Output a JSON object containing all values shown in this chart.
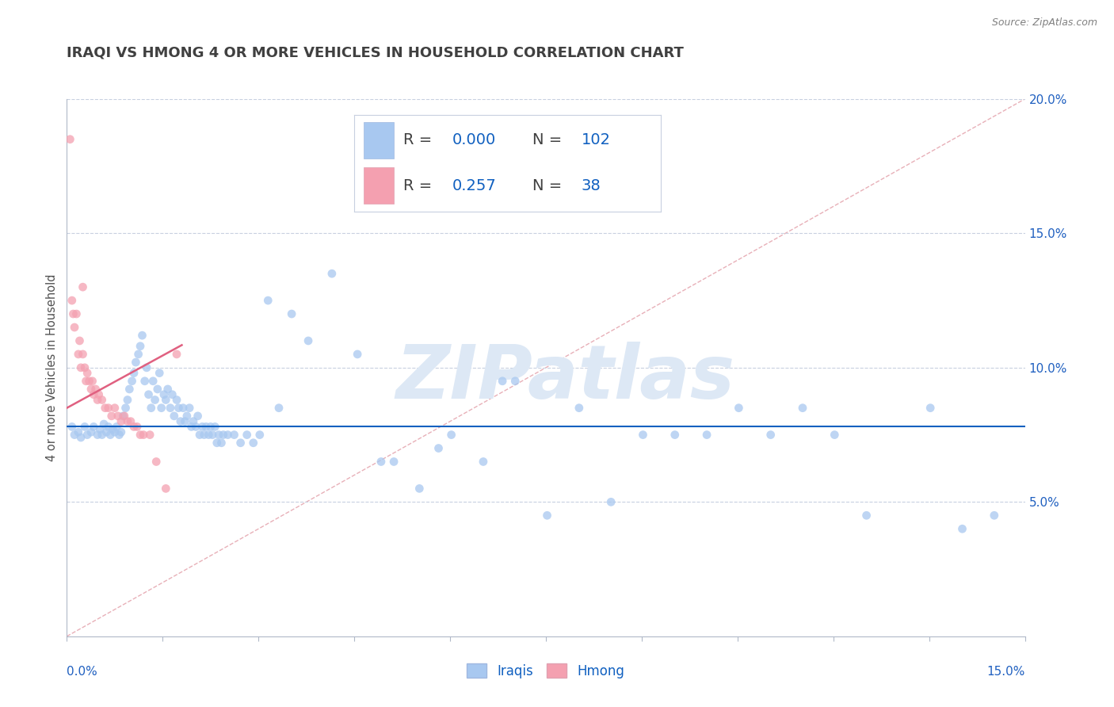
{
  "title": "IRAQI VS HMONG 4 OR MORE VEHICLES IN HOUSEHOLD CORRELATION CHART",
  "source": "Source: ZipAtlas.com",
  "ylabel": "4 or more Vehicles in Household",
  "xlim": [
    0.0,
    15.0
  ],
  "ylim": [
    0.0,
    20.0
  ],
  "ytick_vals": [
    5.0,
    10.0,
    15.0,
    20.0
  ],
  "ytick_labels": [
    "5.0%",
    "10.0%",
    "15.0%",
    "20.0%"
  ],
  "legend_r_iraqi": "0.000",
  "legend_n_iraqi": "102",
  "legend_r_hmong": "0.257",
  "legend_n_hmong": "38",
  "iraqi_color": "#a8c8f0",
  "hmong_color": "#f4a0b0",
  "iraqi_trend_color": "#1060c0",
  "hmong_trend_color": "#e06080",
  "ref_line_color": "#e8b0b8",
  "watermark": "ZIPatlas",
  "watermark_color": "#dde8f5",
  "background_color": "#ffffff",
  "iraqi_x": [
    0.08,
    0.12,
    0.18,
    0.22,
    0.28,
    0.32,
    0.38,
    0.42,
    0.48,
    0.52,
    0.55,
    0.58,
    0.62,
    0.65,
    0.68,
    0.72,
    0.75,
    0.78,
    0.82,
    0.85,
    0.88,
    0.92,
    0.95,
    0.98,
    1.02,
    1.05,
    1.08,
    1.12,
    1.15,
    1.18,
    1.22,
    1.25,
    1.28,
    1.32,
    1.35,
    1.38,
    1.42,
    1.45,
    1.48,
    1.52,
    1.55,
    1.58,
    1.62,
    1.65,
    1.68,
    1.72,
    1.75,
    1.78,
    1.82,
    1.85,
    1.88,
    1.92,
    1.95,
    1.98,
    2.02,
    2.05,
    2.08,
    2.12,
    2.15,
    2.18,
    2.22,
    2.25,
    2.28,
    2.32,
    2.35,
    2.38,
    2.42,
    2.45,
    2.52,
    2.62,
    2.72,
    2.82,
    2.92,
    3.02,
    3.15,
    3.32,
    3.52,
    3.78,
    4.15,
    4.55,
    5.12,
    5.82,
    6.52,
    7.52,
    8.52,
    9.52,
    10.52,
    11.52,
    12.52,
    13.52,
    14.02,
    14.52,
    4.92,
    5.52,
    6.02,
    6.82,
    7.02,
    8.02,
    9.02,
    10.02,
    11.02,
    12.02
  ],
  "iraqi_y": [
    7.8,
    7.5,
    7.6,
    7.4,
    7.8,
    7.5,
    7.6,
    7.8,
    7.5,
    7.7,
    7.5,
    7.9,
    7.6,
    7.8,
    7.5,
    7.7,
    7.6,
    7.8,
    7.5,
    7.6,
    8.2,
    8.5,
    8.8,
    9.2,
    9.5,
    9.8,
    10.2,
    10.5,
    10.8,
    11.2,
    9.5,
    10.0,
    9.0,
    8.5,
    9.5,
    8.8,
    9.2,
    9.8,
    8.5,
    9.0,
    8.8,
    9.2,
    8.5,
    9.0,
    8.2,
    8.8,
    8.5,
    8.0,
    8.5,
    8.0,
    8.2,
    8.5,
    7.8,
    8.0,
    7.8,
    8.2,
    7.5,
    7.8,
    7.5,
    7.8,
    7.5,
    7.8,
    7.5,
    7.8,
    7.2,
    7.5,
    7.2,
    7.5,
    7.5,
    7.5,
    7.2,
    7.5,
    7.2,
    7.5,
    12.5,
    8.5,
    12.0,
    11.0,
    13.5,
    10.5,
    6.5,
    7.0,
    6.5,
    4.5,
    5.0,
    7.5,
    8.5,
    8.5,
    4.5,
    8.5,
    4.0,
    4.5,
    6.5,
    5.5,
    7.5,
    9.5,
    9.5,
    8.5,
    7.5,
    7.5,
    7.5,
    7.5
  ],
  "hmong_x": [
    0.05,
    0.08,
    0.1,
    0.12,
    0.15,
    0.18,
    0.2,
    0.22,
    0.25,
    0.28,
    0.3,
    0.32,
    0.35,
    0.38,
    0.4,
    0.42,
    0.45,
    0.48,
    0.5,
    0.55,
    0.6,
    0.65,
    0.7,
    0.75,
    0.8,
    0.85,
    0.9,
    0.95,
    1.0,
    1.05,
    1.1,
    1.15,
    1.2,
    1.3,
    1.4,
    1.55,
    1.72,
    0.25
  ],
  "hmong_y": [
    18.5,
    12.5,
    12.0,
    11.5,
    12.0,
    10.5,
    11.0,
    10.0,
    10.5,
    10.0,
    9.5,
    9.8,
    9.5,
    9.2,
    9.5,
    9.0,
    9.2,
    8.8,
    9.0,
    8.8,
    8.5,
    8.5,
    8.2,
    8.5,
    8.2,
    8.0,
    8.2,
    8.0,
    8.0,
    7.8,
    7.8,
    7.5,
    7.5,
    7.5,
    6.5,
    5.5,
    10.5,
    13.0
  ]
}
